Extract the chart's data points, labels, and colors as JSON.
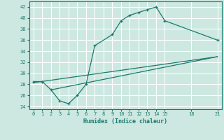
{
  "title": "",
  "xlabel": "Humidex (Indice chaleur)",
  "bg_color": "#cce8e0",
  "line_color": "#1a7a6e",
  "grid_color": "#ffffff",
  "xlim": [
    -0.5,
    21.5
  ],
  "ylim": [
    23.5,
    43
  ],
  "xticks": [
    0,
    1,
    2,
    3,
    4,
    5,
    6,
    7,
    8,
    9,
    10,
    11,
    12,
    13,
    14,
    15,
    18,
    21
  ],
  "yticks": [
    24,
    26,
    28,
    30,
    32,
    34,
    36,
    38,
    40,
    42
  ],
  "line1_x": [
    0,
    1,
    2,
    3,
    4,
    5,
    6,
    7,
    9,
    10,
    11,
    12,
    13,
    14,
    15,
    21
  ],
  "line1_y": [
    28.5,
    28.5,
    27,
    25,
    24.5,
    26,
    28,
    35,
    37,
    39.5,
    40.5,
    41,
    41.5,
    42,
    39.5,
    36
  ],
  "line2_x": [
    0,
    21
  ],
  "line2_y": [
    28.3,
    33
  ],
  "line3_x": [
    2,
    21
  ],
  "line3_y": [
    27,
    33
  ]
}
